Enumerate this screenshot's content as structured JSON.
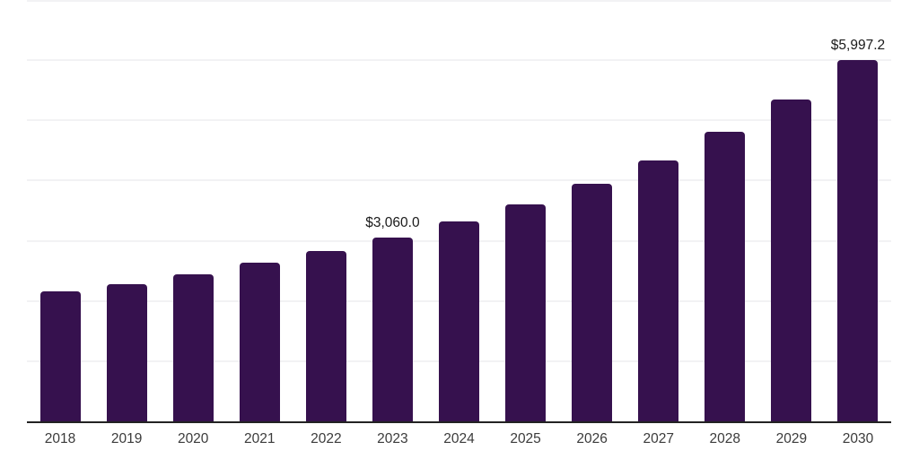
{
  "chart_data": {
    "type": "bar",
    "title": "",
    "categories": [
      "2018",
      "2019",
      "2020",
      "2021",
      "2022",
      "2023",
      "2024",
      "2025",
      "2026",
      "2027",
      "2028",
      "2029",
      "2030"
    ],
    "values": [
      2160,
      2280,
      2445,
      2635,
      2830,
      3060.0,
      3315,
      3605,
      3945,
      4335,
      4810,
      5345,
      5997.2
    ],
    "value_labels": [
      "",
      "",
      "",
      "",
      "",
      "$3,060.0",
      "",
      "",
      "",
      "",
      "",
      "",
      "$5,997.2"
    ],
    "xlabel": "",
    "ylabel": "",
    "ylim": [
      0,
      7000
    ],
    "gridline_step": 1000,
    "grid": true,
    "y_axis_labels_visible": false,
    "legend_position": "none",
    "colors": {
      "bar": "#36114E",
      "gridline": "#F2F2F4",
      "axis_line": "#232323",
      "tick_label": "#3B3B3B",
      "data_label": "#1A1A1A",
      "background": "#FFFFFF"
    }
  }
}
